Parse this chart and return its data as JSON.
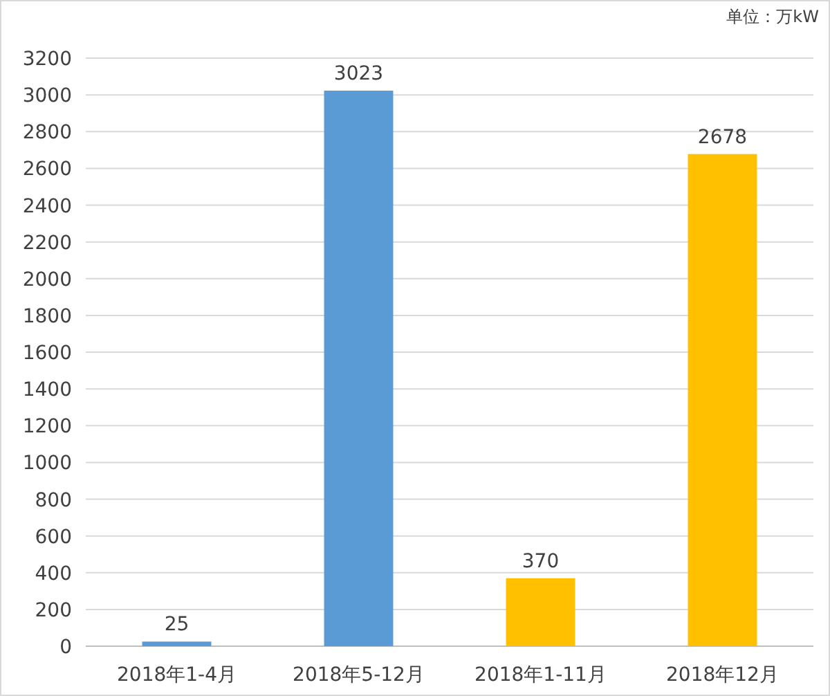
{
  "chart_data": {
    "type": "bar",
    "categories": [
      "2018年1-4月",
      "2018年5-12月",
      "2018年1-11月",
      "2018年12月"
    ],
    "values": [
      25,
      3023,
      370,
      2678
    ],
    "colors": [
      "#5b9bd5",
      "#5b9bd5",
      "#ffc000",
      "#ffc000"
    ],
    "ylim": [
      0,
      3200
    ],
    "yticks": [
      0,
      200,
      400,
      600,
      800,
      1000,
      1200,
      1400,
      1600,
      1800,
      2000,
      2200,
      2400,
      2600,
      2800,
      3000,
      3200
    ],
    "grid": "y",
    "data_labels": true,
    "annotations": [
      "单位：万kW"
    ]
  }
}
